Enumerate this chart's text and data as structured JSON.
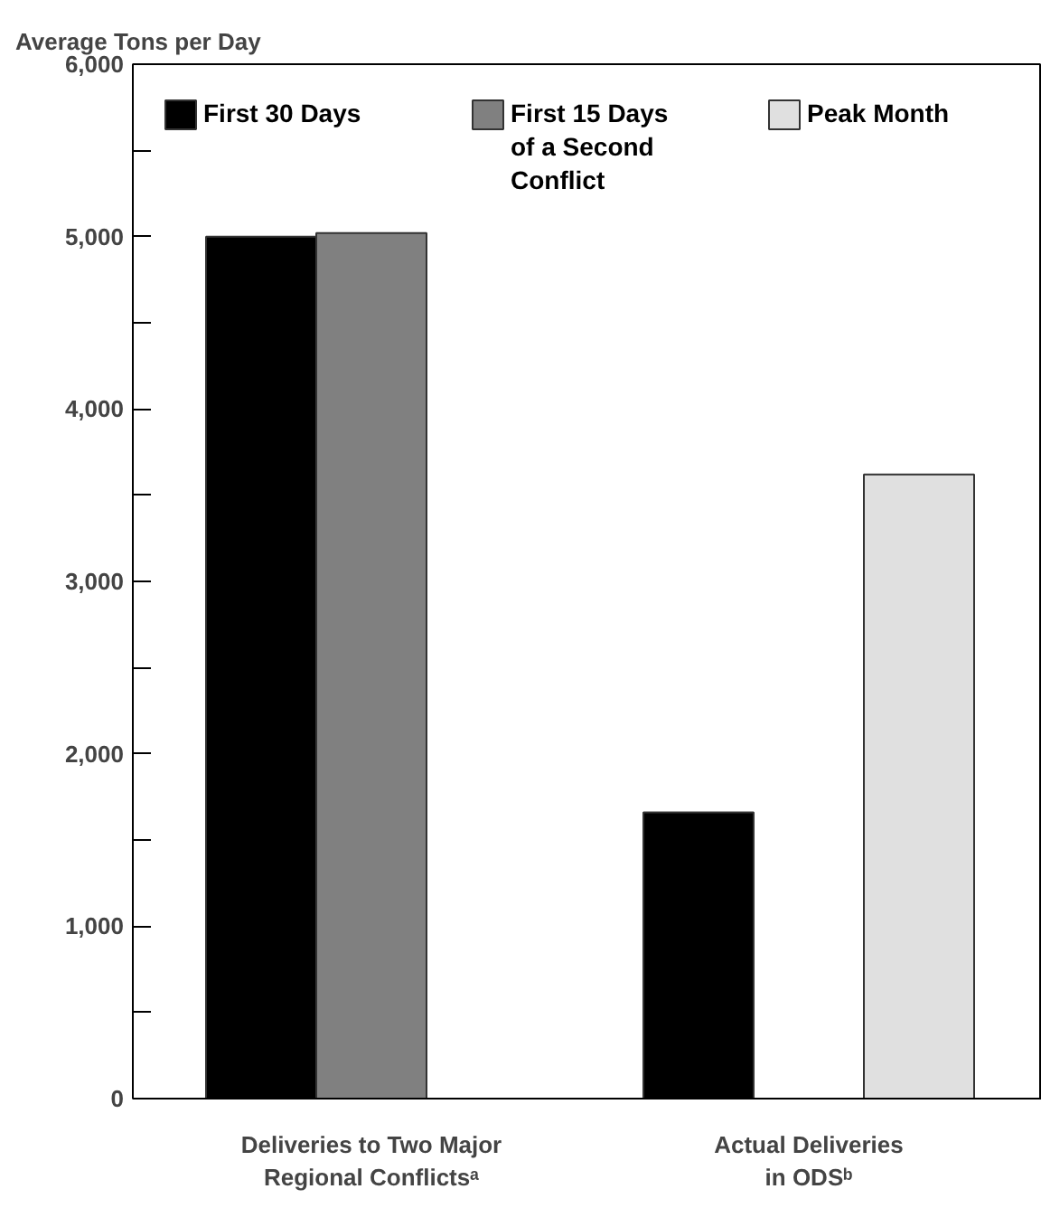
{
  "chart_data": {
    "type": "bar",
    "ylabel": "Average Tons per Day",
    "categories": [
      "Deliveries to Two Major\nRegional Conflictsᵃ",
      "Actual Deliveries\nin ODSᵇ"
    ],
    "series": [
      {
        "name": "First 30 Days",
        "color": "#000000",
        "values": [
          5000,
          1660
        ]
      },
      {
        "name": "First 15 Days\nof a Second\nConflict",
        "color": "#808080",
        "values": [
          5020,
          null
        ]
      },
      {
        "name": "Peak Month",
        "color": "#e0e0e0",
        "values": [
          null,
          3620
        ]
      }
    ],
    "ylim": [
      0,
      6000
    ],
    "yticks": [
      0,
      {
        "value": 500,
        "label": null
      },
      "1,000",
      {
        "value": 1500,
        "label": null
      },
      {
        "value": 2000,
        "label": "2,000"
      },
      {
        "value": 2500,
        "label": null
      },
      {
        "value": 3000,
        "label": "3,000"
      },
      {
        "value": 3500,
        "label": null
      },
      {
        "value": 4000,
        "label": "4,000"
      },
      {
        "value": 4500,
        "label": null
      },
      {
        "value": 5000,
        "label": "5,000"
      },
      {
        "value": 5500,
        "label": null
      },
      {
        "value": 6000,
        "label": "6,000"
      }
    ],
    "grid": false,
    "legend": "top"
  }
}
